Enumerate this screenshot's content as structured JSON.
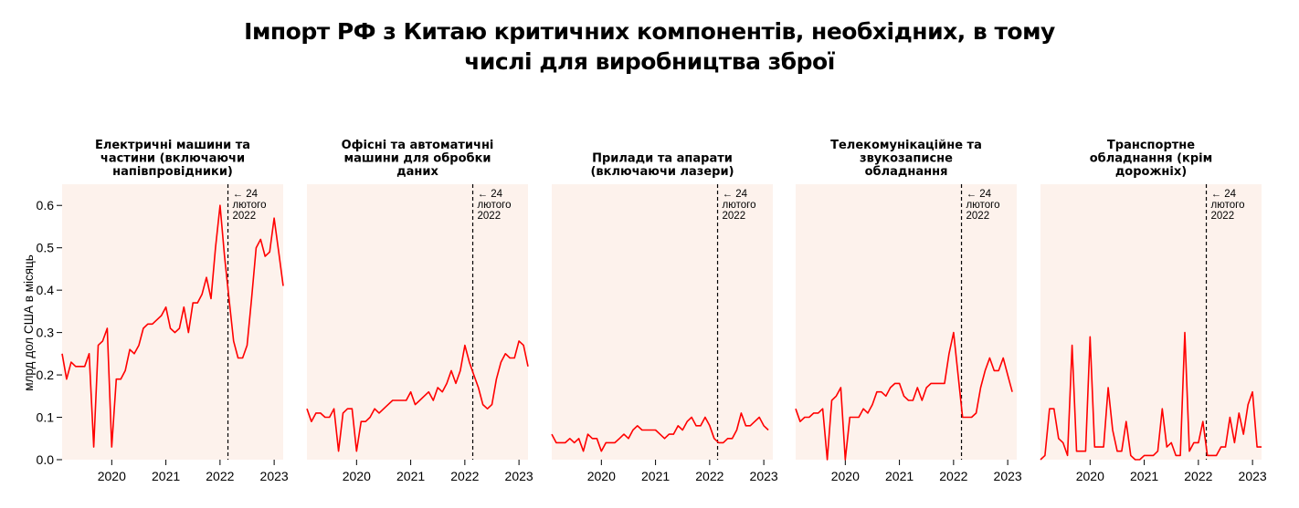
{
  "title_lines": [
    "Імпорт РФ з Китаю критичних компонентів, необхідних, в тому",
    "числі для виробництва зброї"
  ],
  "colors": {
    "line": "#ff0000",
    "panel_bg": "#fdf2ec",
    "vline": "#000000"
  },
  "chart_data": {
    "type": "line",
    "ylabel": "млрд дол США в місяць",
    "ylim": [
      0,
      0.65
    ],
    "yticks": [
      "0.0",
      "0.1",
      "0.2",
      "0.3",
      "0.4",
      "0.5",
      "0.6"
    ],
    "xlim": [
      "2019-02",
      "2023-03"
    ],
    "xticks": [
      "2020",
      "2021",
      "2022",
      "2023"
    ],
    "annotation": {
      "date": "2022-02-24",
      "lines": [
        "← 24",
        "лютого",
        "2022"
      ]
    },
    "x_start": "2019-02",
    "x_step": "month",
    "panels": [
      {
        "title_lines": [
          "Електричні машини та",
          "частини (включаючи",
          "напівпровідники)"
        ],
        "values": [
          0.25,
          0.19,
          0.23,
          0.22,
          0.22,
          0.22,
          0.25,
          0.03,
          0.27,
          0.28,
          0.31,
          0.03,
          0.19,
          0.19,
          0.21,
          0.26,
          0.25,
          0.27,
          0.31,
          0.32,
          0.32,
          0.33,
          0.34,
          0.36,
          0.31,
          0.3,
          0.31,
          0.36,
          0.3,
          0.37,
          0.37,
          0.39,
          0.43,
          0.38,
          0.5,
          0.6,
          0.48,
          0.38,
          0.28,
          0.24,
          0.24,
          0.27,
          0.38,
          0.5,
          0.52,
          0.48,
          0.49,
          0.57,
          0.49,
          0.41
        ]
      },
      {
        "title_lines": [
          "Офісні та автоматичні",
          "машини для обробки",
          "даних"
        ],
        "values": [
          0.12,
          0.09,
          0.11,
          0.11,
          0.1,
          0.1,
          0.12,
          0.02,
          0.11,
          0.12,
          0.12,
          0.02,
          0.09,
          0.09,
          0.1,
          0.12,
          0.11,
          0.12,
          0.13,
          0.14,
          0.14,
          0.14,
          0.14,
          0.16,
          0.13,
          0.14,
          0.15,
          0.16,
          0.14,
          0.17,
          0.16,
          0.18,
          0.21,
          0.18,
          0.21,
          0.27,
          0.23,
          0.2,
          0.17,
          0.13,
          0.12,
          0.13,
          0.19,
          0.23,
          0.25,
          0.24,
          0.24,
          0.28,
          0.27,
          0.22
        ]
      },
      {
        "title_lines": [
          "Прилади та апарати",
          "(включаючи лазери)"
        ],
        "values": [
          0.06,
          0.04,
          0.04,
          0.04,
          0.05,
          0.04,
          0.05,
          0.02,
          0.06,
          0.05,
          0.05,
          0.02,
          0.04,
          0.04,
          0.04,
          0.05,
          0.06,
          0.05,
          0.07,
          0.08,
          0.07,
          0.07,
          0.07,
          0.07,
          0.06,
          0.05,
          0.06,
          0.06,
          0.08,
          0.07,
          0.09,
          0.1,
          0.08,
          0.08,
          0.1,
          0.08,
          0.05,
          0.04,
          0.04,
          0.05,
          0.05,
          0.07,
          0.11,
          0.08,
          0.08,
          0.09,
          0.1,
          0.08,
          0.07
        ]
      },
      {
        "title_lines": [
          "Телекомунікаційне та",
          "звукозаписне",
          "обладнання"
        ],
        "values": [
          0.12,
          0.09,
          0.1,
          0.1,
          0.11,
          0.11,
          0.12,
          0.0,
          0.14,
          0.15,
          0.17,
          0.0,
          0.1,
          0.1,
          0.1,
          0.12,
          0.11,
          0.13,
          0.16,
          0.16,
          0.15,
          0.17,
          0.18,
          0.18,
          0.15,
          0.14,
          0.14,
          0.17,
          0.14,
          0.17,
          0.18,
          0.18,
          0.18,
          0.18,
          0.25,
          0.3,
          0.2,
          0.1,
          0.1,
          0.1,
          0.11,
          0.17,
          0.21,
          0.24,
          0.21,
          0.21,
          0.24,
          0.2,
          0.16
        ]
      },
      {
        "title_lines": [
          "Транспортне",
          "обладнання (крім",
          "дорожніх)"
        ],
        "values": [
          0.0,
          0.01,
          0.12,
          0.12,
          0.05,
          0.04,
          0.01,
          0.27,
          0.02,
          0.02,
          0.02,
          0.29,
          0.03,
          0.03,
          0.03,
          0.17,
          0.07,
          0.02,
          0.02,
          0.09,
          0.01,
          0.0,
          0.0,
          0.01,
          0.01,
          0.01,
          0.02,
          0.12,
          0.03,
          0.04,
          0.01,
          0.01,
          0.3,
          0.02,
          0.04,
          0.04,
          0.09,
          0.01,
          0.01,
          0.01,
          0.03,
          0.03,
          0.1,
          0.04,
          0.11,
          0.06,
          0.13,
          0.16,
          0.03,
          0.03
        ]
      }
    ]
  }
}
